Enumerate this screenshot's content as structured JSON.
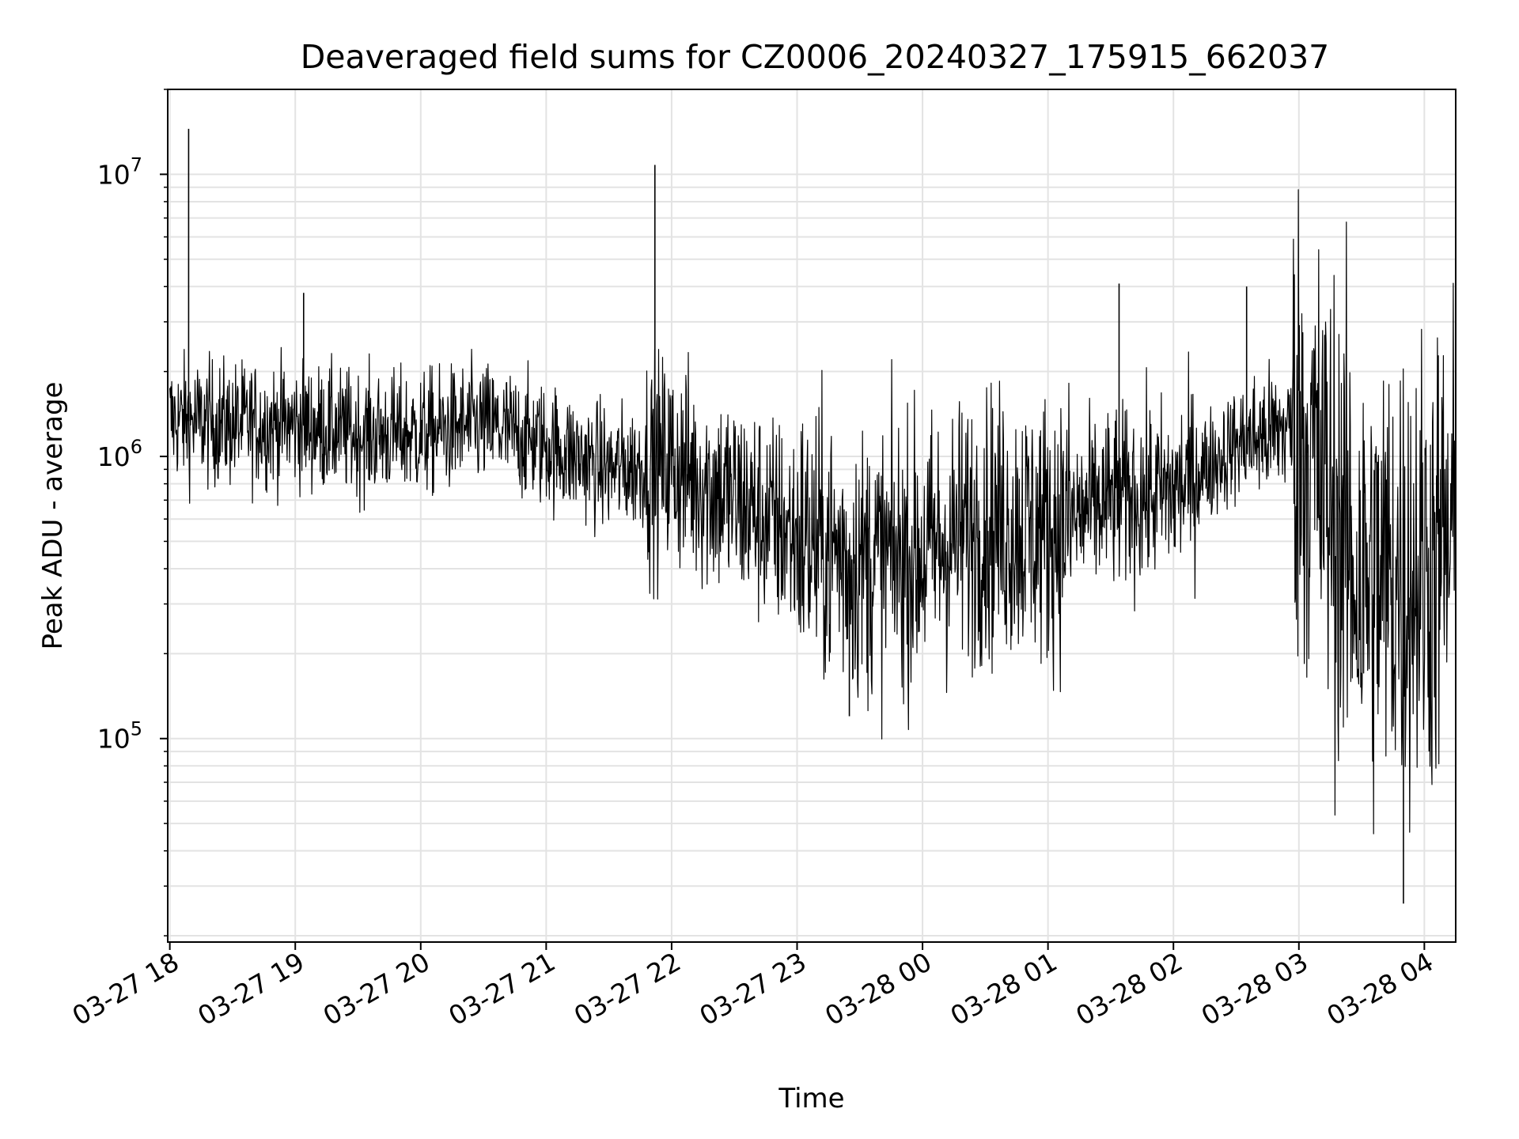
{
  "chart_data": {
    "type": "line",
    "title": "Deaveraged field sums for CZ0006_20240327_175915_662037",
    "xlabel": "Time",
    "ylabel": "Peak ADU - average",
    "yscale": "log",
    "ylim": [
      19000,
      20000000
    ],
    "xlim": [
      "2024-03-27 17:59",
      "2024-03-28 04:15"
    ],
    "grid": true,
    "legend": "none",
    "line_color": "#000000",
    "x_ticks": [
      "03-27 18",
      "03-27 19",
      "03-27 20",
      "03-27 21",
      "03-27 22",
      "03-27 23",
      "03-28 00",
      "03-28 01",
      "03-28 02",
      "03-28 03",
      "03-28 04"
    ],
    "y_ticks": [
      {
        "base": "10",
        "exp": "5",
        "value": 100000
      },
      {
        "base": "10",
        "exp": "6",
        "value": 1000000
      },
      {
        "base": "10",
        "exp": "7",
        "value": 10000000
      }
    ],
    "series": [
      {
        "x": [
          "2024-03-27 18:00",
          "2024-03-27 18:30",
          "2024-03-27 19:00",
          "2024-03-27 19:30",
          "2024-03-27 20:00",
          "2024-03-27 20:30",
          "2024-03-27 21:00",
          "2024-03-27 21:30",
          "2024-03-27 22:00",
          "2024-03-27 22:30",
          "2024-03-27 23:00",
          "2024-03-27 23:30",
          "2024-03-28 00:00",
          "2024-03-28 00:30",
          "2024-03-28 01:00",
          "2024-03-28 01:30",
          "2024-03-28 02:00",
          "2024-03-28 02:30",
          "2024-03-28 03:00",
          "2024-03-28 03:30",
          "2024-03-28 04:00",
          "2024-03-28 04:15"
        ],
        "y": [
          1350000,
          1300000,
          1300000,
          1200000,
          1200000,
          1300000,
          1100000,
          900000,
          950000,
          700000,
          520000,
          420000,
          450000,
          580000,
          550000,
          700000,
          750000,
          1100000,
          1300000,
          350000,
          400000,
          500000
        ],
        "spikes": [
          {
            "x": "2024-03-27 18:09",
            "y": 14500000
          },
          {
            "x": "2024-03-27 19:04",
            "y": 3800000
          },
          {
            "x": "2024-03-27 21:52",
            "y": 10800000
          },
          {
            "x": "2024-03-27 23:25",
            "y": 120000
          },
          {
            "x": "2024-03-28 01:34",
            "y": 4100000
          },
          {
            "x": "2024-03-28 02:35",
            "y": 4000000
          },
          {
            "x": "2024-03-28 03:50",
            "y": 26000
          }
        ]
      }
    ]
  }
}
